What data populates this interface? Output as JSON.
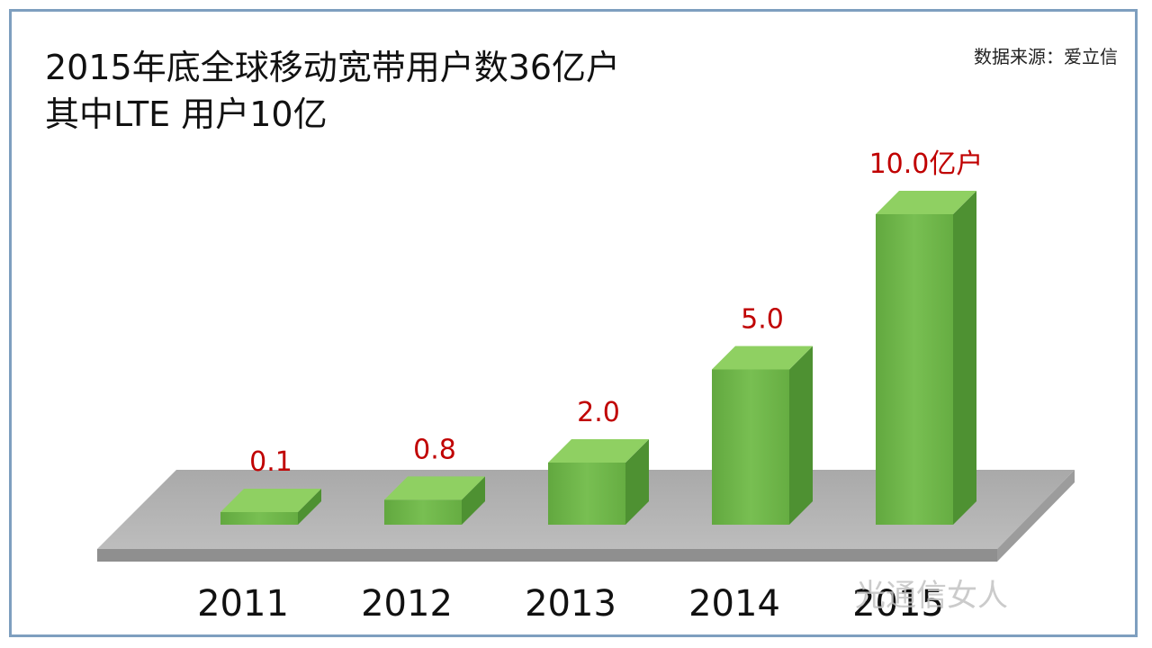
{
  "title_line1": "2015年底全球移动宽带用户数36亿户",
  "title_line2": "其中LTE 用户10亿",
  "source": "数据来源：爱立信",
  "watermark": "光通信女人",
  "chart_data": {
    "type": "bar",
    "categories": [
      "2011",
      "2012",
      "2013",
      "2014",
      "2015"
    ],
    "values": [
      0.1,
      0.8,
      2.0,
      5.0,
      10.0
    ],
    "data_labels": [
      "0.1",
      "0.8",
      "2.0",
      "5.0",
      "10.0亿户"
    ],
    "unit": "亿户",
    "ylim": [
      0,
      10.5
    ],
    "grid": false,
    "legend": "none",
    "bar_color": "#6fb64b",
    "bar_top_color": "#8fd062",
    "bar_side_color": "#4e9132",
    "floor_color": "#b5b5b5",
    "label_color": "#c00000"
  }
}
